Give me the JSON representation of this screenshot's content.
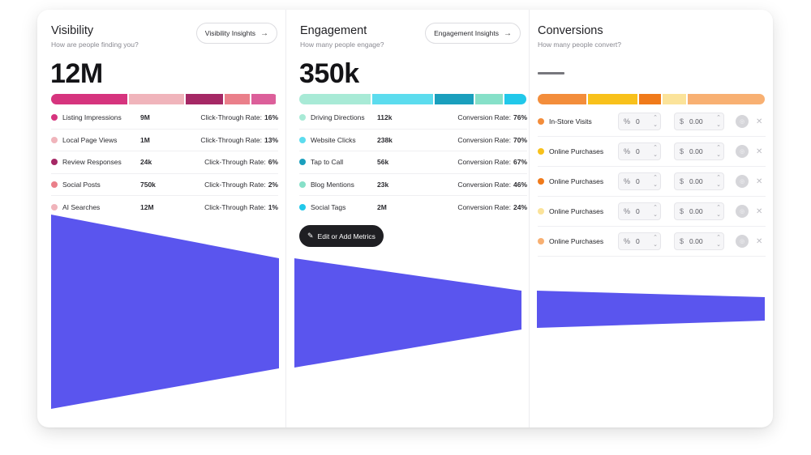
{
  "colors": {
    "funnel": "#5a55ee"
  },
  "visibility": {
    "title": "Visibility",
    "subtitle": "How are people finding you?",
    "insights_label": "Visibility Insights",
    "insights_icon": "arrow-right-icon",
    "total": "12M",
    "segments": [
      {
        "color": "#d6347e",
        "share": 0.345
      },
      {
        "color": "#f0b4bb",
        "share": 0.25
      },
      {
        "color": "#a52865",
        "share": 0.17
      },
      {
        "color": "#ea7f8a",
        "share": 0.115
      },
      {
        "color": "#dc5f9a",
        "share": 0.11
      }
    ],
    "rows": [
      {
        "label": "Listing Impressions",
        "value": "9M",
        "rate_label": "Click-Through Rate:",
        "rate": "16%",
        "color": "#d6347e"
      },
      {
        "label": "Local Page Views",
        "value": "1M",
        "rate_label": "Click-Through Rate:",
        "rate": "13%",
        "color": "#f0b4bb"
      },
      {
        "label": "Review Responses",
        "value": "24k",
        "rate_label": "Click-Through Rate:",
        "rate": "6%",
        "color": "#a52865"
      },
      {
        "label": "Social Posts",
        "value": "750k",
        "rate_label": "Click-Through Rate:",
        "rate": "2%",
        "color": "#ea7f8a"
      },
      {
        "label": "AI Searches",
        "value": "12M",
        "rate_label": "Click-Through Rate:",
        "rate": "1%",
        "color": "#f0b4bb"
      }
    ]
  },
  "engagement": {
    "title": "Engagement",
    "subtitle": "How many people engage?",
    "insights_label": "Engagement Insights",
    "insights_icon": "arrow-right-icon",
    "total": "350k",
    "segments": [
      {
        "color": "#a8ead6",
        "share": 0.325
      },
      {
        "color": "#5cdcee",
        "share": 0.275
      },
      {
        "color": "#1a9fbd",
        "share": 0.175
      },
      {
        "color": "#86e0c8",
        "share": 0.125
      },
      {
        "color": "#21c8ea",
        "share": 0.1
      }
    ],
    "rows": [
      {
        "label": "Driving Directions",
        "value": "112k",
        "rate_label": "Conversion Rate:",
        "rate": "76%",
        "color": "#a8ead6"
      },
      {
        "label": "Website Clicks",
        "value": "238k",
        "rate_label": "Conversion Rate:",
        "rate": "70%",
        "color": "#5cdcee"
      },
      {
        "label": "Tap to Call",
        "value": "56k",
        "rate_label": "Conversion Rate:",
        "rate": "67%",
        "color": "#1a9fbd"
      },
      {
        "label": "Blog Mentions",
        "value": "23k",
        "rate_label": "Conversion Rate:",
        "rate": "46%",
        "color": "#86e0c8"
      },
      {
        "label": "Social Tags",
        "value": "2M",
        "rate_label": "Conversion Rate:",
        "rate": "24%",
        "color": "#21c8ea"
      }
    ],
    "edit_label": "Edit or Add Metrics",
    "edit_icon": "pencil-icon"
  },
  "conversions": {
    "title": "Conversions",
    "subtitle": "How many people convert?",
    "total_placeholder": "—",
    "segments": [
      {
        "color": "#f38d3b",
        "share": 0.22
      },
      {
        "color": "#f8c11b",
        "share": 0.225
      },
      {
        "color": "#f07a1a",
        "share": 0.1
      },
      {
        "color": "#fbe39a",
        "share": 0.105
      },
      {
        "color": "#f8b072",
        "share": 0.35
      }
    ],
    "rows": [
      {
        "label": "In-Store Visits",
        "pct_symbol": "%",
        "pct": "0",
        "usd_symbol": "$",
        "usd": "0.00",
        "color": "#f38d3b"
      },
      {
        "label": "Online Purchases",
        "pct_symbol": "%",
        "pct": "0",
        "usd_symbol": "$",
        "usd": "0.00",
        "color": "#f8c11b"
      },
      {
        "label": "Online Purchases",
        "pct_symbol": "%",
        "pct": "0",
        "usd_symbol": "$",
        "usd": "0.00",
        "color": "#f07a1a"
      },
      {
        "label": "Online Purchases",
        "pct_symbol": "%",
        "pct": "0",
        "usd_symbol": "$",
        "usd": "0.00",
        "color": "#fbe39a"
      },
      {
        "label": "Online Purchases",
        "pct_symbol": "%",
        "pct": "0",
        "usd_symbol": "$",
        "usd": "0.00",
        "color": "#f8b072"
      }
    ]
  }
}
